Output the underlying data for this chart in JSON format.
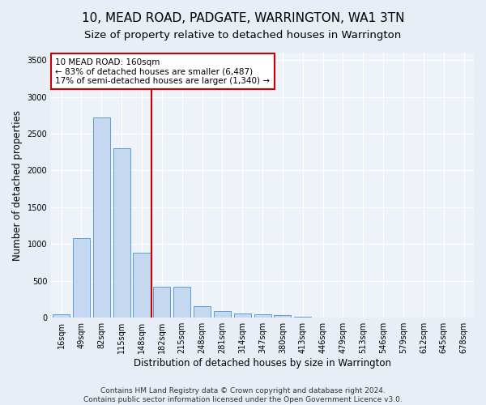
{
  "title": "10, MEAD ROAD, PADGATE, WARRINGTON, WA1 3TN",
  "subtitle": "Size of property relative to detached houses in Warrington",
  "xlabel": "Distribution of detached houses by size in Warrington",
  "ylabel": "Number of detached properties",
  "categories": [
    "16sqm",
    "49sqm",
    "82sqm",
    "115sqm",
    "148sqm",
    "182sqm",
    "215sqm",
    "248sqm",
    "281sqm",
    "314sqm",
    "347sqm",
    "380sqm",
    "413sqm",
    "446sqm",
    "479sqm",
    "513sqm",
    "546sqm",
    "579sqm",
    "612sqm",
    "645sqm",
    "678sqm"
  ],
  "values": [
    50,
    1080,
    2720,
    2300,
    880,
    420,
    420,
    155,
    95,
    60,
    50,
    30,
    10,
    5,
    2,
    1,
    1,
    0,
    0,
    0,
    0
  ],
  "bar_color": "#c5d8f0",
  "bar_edge_color": "#5a9fd4",
  "vline_x_index": 4,
  "vline_color": "#cc0000",
  "annotation_text": "10 MEAD ROAD: 160sqm\n← 83% of detached houses are smaller (6,487)\n17% of semi-detached houses are larger (1,340) →",
  "annotation_box_color": "white",
  "annotation_box_edge_color": "#cc0000",
  "ylim": [
    0,
    3600
  ],
  "yticks": [
    0,
    500,
    1000,
    1500,
    2000,
    2500,
    3000,
    3500
  ],
  "footer_line1": "Contains HM Land Registry data © Crown copyright and database right 2024.",
  "footer_line2": "Contains public sector information licensed under the Open Government Licence v3.0.",
  "bg_color": "#e8eef6",
  "plot_bg_color": "#eef2f9",
  "title_fontsize": 11,
  "subtitle_fontsize": 9.5,
  "axis_label_fontsize": 8.5,
  "tick_fontsize": 7,
  "footer_fontsize": 6.5,
  "annotation_fontsize": 7.5
}
